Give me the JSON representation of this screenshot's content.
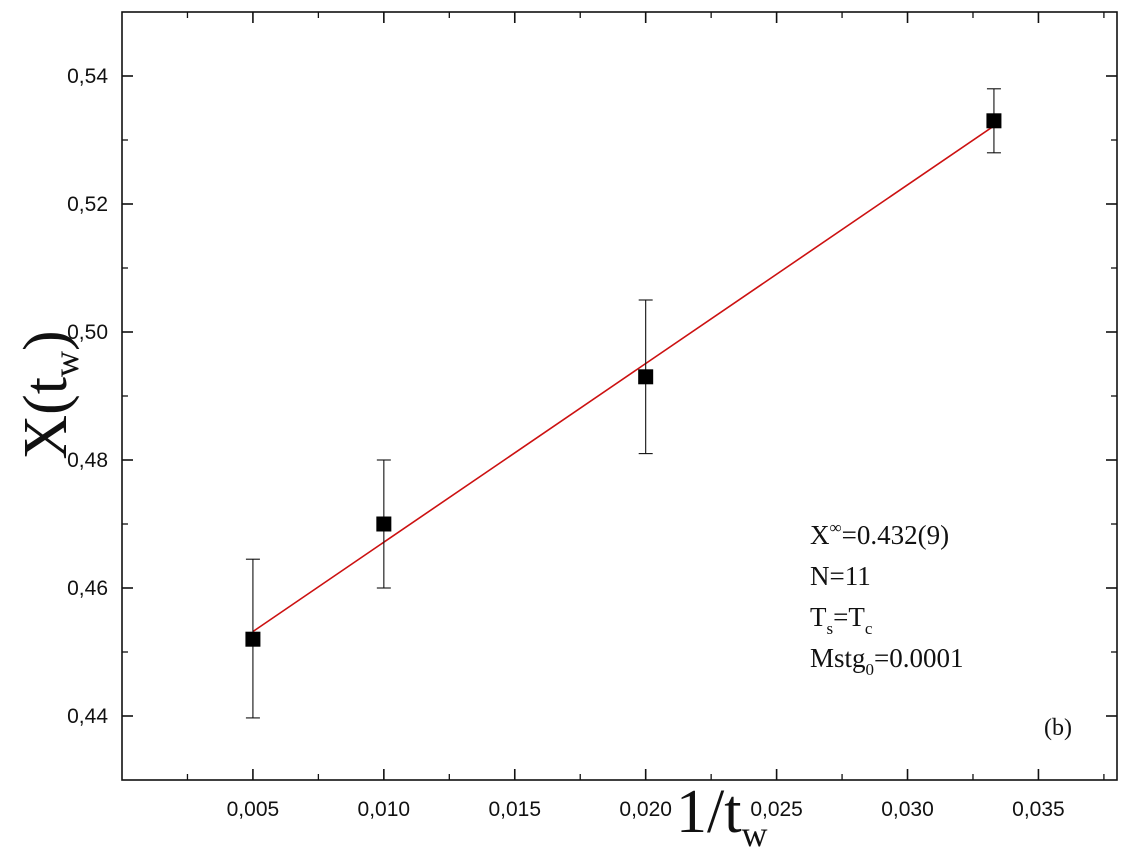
{
  "chart_data": {
    "type": "scatter",
    "title": "",
    "xlabel": {
      "main": "1/t",
      "sub": "w"
    },
    "ylabel": {
      "main": "X(t",
      "sub": "w",
      "close": ")"
    },
    "xlim": [
      0.0,
      0.038
    ],
    "ylim": [
      0.43,
      0.55
    ],
    "x_ticks": [
      0.005,
      0.01,
      0.015,
      0.02,
      0.025,
      0.03,
      0.035
    ],
    "x_tick_labels": [
      "0,005",
      "0,010",
      "0,015",
      "0,020",
      "0,025",
      "0,030",
      "0,035"
    ],
    "y_ticks": [
      0.44,
      0.46,
      0.48,
      0.5,
      0.52,
      0.54
    ],
    "y_tick_labels": [
      "0,44",
      "0,46",
      "0,48",
      "0,50",
      "0,52",
      "0,54"
    ],
    "grid": false,
    "series": [
      {
        "kind": "points",
        "marker": "square",
        "color": "#000000",
        "points": [
          {
            "x": 0.005,
            "y": 0.452,
            "err_low": 0.4397,
            "err_high": 0.4645
          },
          {
            "x": 0.01,
            "y": 0.47,
            "err_low": 0.46,
            "err_high": 0.48
          },
          {
            "x": 0.02,
            "y": 0.493,
            "err_low": 0.481,
            "err_high": 0.505
          },
          {
            "x": 0.0333,
            "y": 0.533,
            "err_low": 0.528,
            "err_high": 0.538
          }
        ]
      },
      {
        "kind": "fit-line",
        "color": "#cc1111",
        "x": [
          0.005,
          0.0333
        ],
        "y": [
          0.4532,
          0.5322
        ]
      }
    ],
    "annotations": [
      {
        "main": "X",
        "sup": "∞",
        "rest": "=0.432(9)"
      },
      {
        "main": "N=11"
      },
      {
        "main": "T",
        "sub": "s",
        "mid": "=T",
        "sub2": "c"
      },
      {
        "main": "Mstg",
        "sub": "0",
        "rest": "=0.0001"
      }
    ],
    "panel_label": "(b)"
  }
}
